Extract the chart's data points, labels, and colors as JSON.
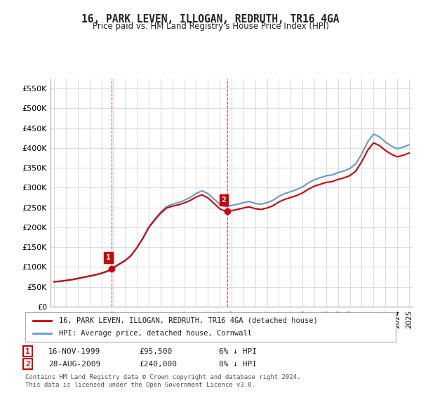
{
  "title": "16, PARK LEVEN, ILLOGAN, REDRUTH, TR16 4GA",
  "subtitle": "Price paid vs. HM Land Registry's House Price Index (HPI)",
  "legend_entry1": "16, PARK LEVEN, ILLOGAN, REDRUTH, TR16 4GA (detached house)",
  "legend_entry2": "HPI: Average price, detached house, Cornwall",
  "footnote": "Contains HM Land Registry data © Crown copyright and database right 2024.\nThis data is licensed under the Open Government Licence v3.0.",
  "table_row1": [
    "1",
    "16-NOV-1999",
    "£95,500",
    "6% ↓ HPI"
  ],
  "table_row2": [
    "2",
    "28-AUG-2009",
    "£240,000",
    "8% ↓ HPI"
  ],
  "hpi_color": "#6699cc",
  "price_color": "#cc0000",
  "vline_color": "#cc0000",
  "marker1_color": "#cc0000",
  "marker2_color": "#cc0000",
  "label1_color": "#cc0000",
  "label2_color": "#cc0000",
  "ylim": [
    0,
    575000
  ],
  "yticks": [
    0,
    50000,
    100000,
    150000,
    200000,
    250000,
    300000,
    350000,
    400000,
    450000,
    500000,
    550000
  ],
  "sale1_year": 1999.88,
  "sale1_price": 95500,
  "sale2_year": 2009.65,
  "sale2_price": 240000,
  "background_color": "#ffffff",
  "grid_color": "#dddddd"
}
